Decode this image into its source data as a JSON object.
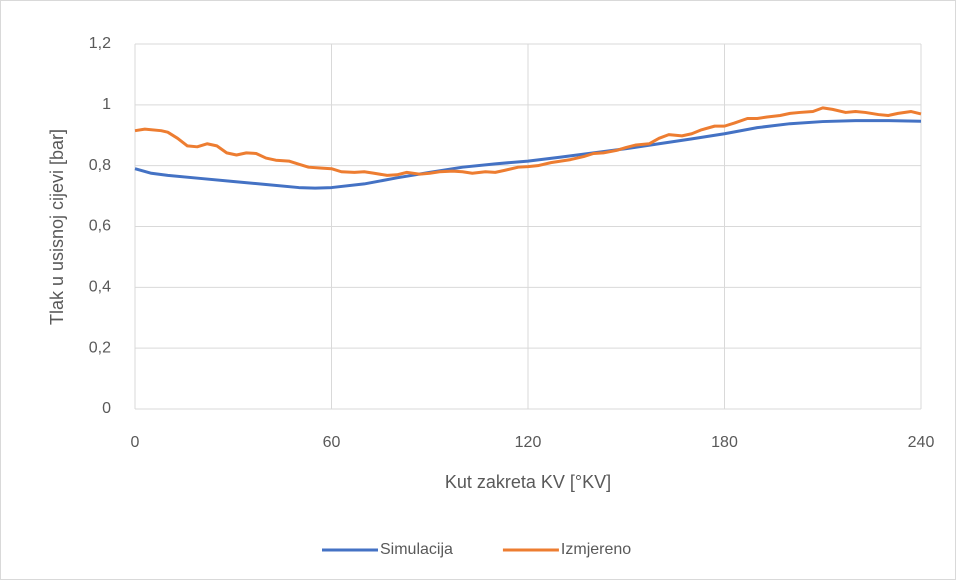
{
  "chart_data": {
    "type": "line",
    "x_label": "Kut zakreta KV [°KV]",
    "y_label": "Tlak u usisnoj cijevi [bar]",
    "xlim": [
      0,
      240
    ],
    "xticks": [
      0,
      60,
      120,
      180,
      240
    ],
    "ylim": [
      0,
      1.2
    ],
    "yticks": [
      0,
      {
        "value": 0.2,
        "label": "0,2"
      },
      {
        "value": 0.4,
        "label": "0,4"
      },
      {
        "value": 0.6,
        "label": "0,6"
      },
      {
        "value": 0.8,
        "label": "0,8"
      },
      1,
      {
        "value": 1.2,
        "label": "1,2"
      }
    ],
    "grid": true,
    "legend": "bottom",
    "series": [
      {
        "name": "Simulacija",
        "color": "#4472c4",
        "x": [
          0,
          5,
          10,
          20,
          30,
          40,
          50,
          55,
          60,
          70,
          80,
          90,
          100,
          110,
          120,
          130,
          140,
          150,
          160,
          170,
          180,
          190,
          200,
          210,
          220,
          230,
          240
        ],
        "values": [
          0.79,
          0.775,
          0.768,
          0.758,
          0.748,
          0.738,
          0.728,
          0.726,
          0.728,
          0.74,
          0.76,
          0.778,
          0.795,
          0.806,
          0.815,
          0.828,
          0.842,
          0.856,
          0.872,
          0.888,
          0.905,
          0.925,
          0.938,
          0.945,
          0.948,
          0.948,
          0.946
        ]
      },
      {
        "name": "Izmjereno",
        "color": "#ed7d31",
        "x": [
          0,
          3,
          8,
          10,
          13,
          16,
          19,
          22,
          25,
          28,
          31,
          34,
          37,
          40,
          43,
          47,
          50,
          53,
          57,
          60,
          63,
          67,
          70,
          73,
          77,
          80,
          83,
          87,
          90,
          93,
          97,
          100,
          103,
          107,
          110,
          113,
          117,
          120,
          123,
          127,
          130,
          133,
          137,
          140,
          143,
          147,
          150,
          153,
          157,
          160,
          163,
          167,
          170,
          173,
          177,
          180,
          183,
          187,
          190,
          193,
          197,
          200,
          203,
          207,
          210,
          213,
          217,
          220,
          223,
          227,
          230,
          233,
          237,
          240
        ],
        "values": [
          0.915,
          0.92,
          0.915,
          0.91,
          0.89,
          0.865,
          0.862,
          0.872,
          0.865,
          0.842,
          0.835,
          0.842,
          0.84,
          0.825,
          0.818,
          0.815,
          0.805,
          0.795,
          0.792,
          0.79,
          0.78,
          0.778,
          0.78,
          0.775,
          0.768,
          0.77,
          0.778,
          0.772,
          0.775,
          0.78,
          0.782,
          0.78,
          0.775,
          0.78,
          0.778,
          0.785,
          0.795,
          0.797,
          0.8,
          0.81,
          0.815,
          0.82,
          0.83,
          0.84,
          0.842,
          0.85,
          0.86,
          0.868,
          0.872,
          0.89,
          0.902,
          0.898,
          0.905,
          0.918,
          0.93,
          0.93,
          0.94,
          0.955,
          0.955,
          0.96,
          0.965,
          0.972,
          0.975,
          0.978,
          0.99,
          0.985,
          0.975,
          0.978,
          0.975,
          0.968,
          0.965,
          0.972,
          0.978,
          0.97
        ]
      }
    ]
  }
}
